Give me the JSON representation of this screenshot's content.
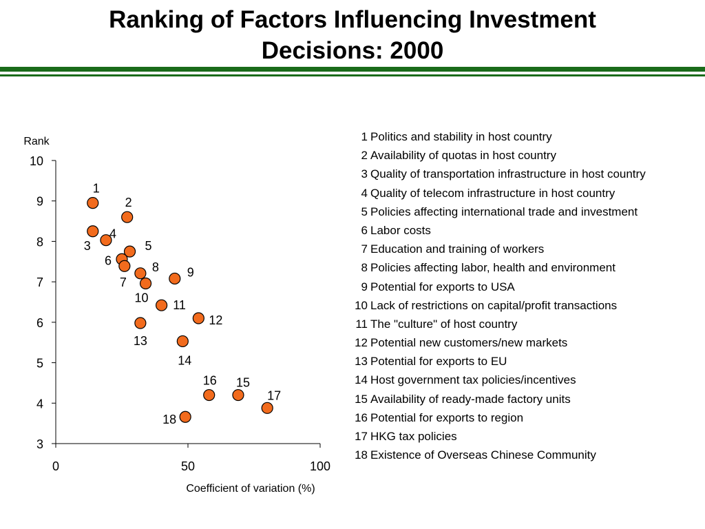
{
  "title_line1": "Ranking of Factors Influencing Investment",
  "title_line2": "Decisions: 2000",
  "chart_data": {
    "type": "scatter",
    "xlabel": "Coefficient of variation (%)",
    "ylabel": "Rank",
    "xlim": [
      0,
      100
    ],
    "ylim": [
      3,
      10
    ],
    "xticks": [
      0,
      50,
      100
    ],
    "yticks": [
      3,
      4,
      5,
      6,
      7,
      8,
      9,
      10
    ],
    "grid": false,
    "marker_color": "#f26b1d",
    "marker_edge": "#000000",
    "points": [
      {
        "label": "1",
        "x": 14,
        "y": 8.95
      },
      {
        "label": "2",
        "x": 27,
        "y": 8.6
      },
      {
        "label": "3",
        "x": 14,
        "y": 8.25
      },
      {
        "label": "4",
        "x": 19,
        "y": 8.03
      },
      {
        "label": "5",
        "x": 28,
        "y": 7.75
      },
      {
        "label": "6",
        "x": 25,
        "y": 7.56
      },
      {
        "label": "7",
        "x": 26,
        "y": 7.39
      },
      {
        "label": "8",
        "x": 32,
        "y": 7.21
      },
      {
        "label": "9",
        "x": 45,
        "y": 7.08
      },
      {
        "label": "10",
        "x": 34,
        "y": 6.96
      },
      {
        "label": "11",
        "x": 40,
        "y": 6.42
      },
      {
        "label": "12",
        "x": 54,
        "y": 6.1
      },
      {
        "label": "13",
        "x": 32,
        "y": 5.98
      },
      {
        "label": "14",
        "x": 48,
        "y": 5.53
      },
      {
        "label": "16",
        "x": 58,
        "y": 4.2
      },
      {
        "label": "15",
        "x": 69,
        "y": 4.2
      },
      {
        "label": "17",
        "x": 80,
        "y": 3.88
      },
      {
        "label": "18",
        "x": 49,
        "y": 3.66
      }
    ]
  },
  "legend": [
    {
      "num": "1",
      "text": "Politics and stability in host country"
    },
    {
      "num": "2",
      "text": "Availability of quotas in host country"
    },
    {
      "num": "3",
      "text": "Quality of transportation infrastructure in host country"
    },
    {
      "num": "4",
      "text": "Quality of telecom infrastructure in host country"
    },
    {
      "num": "5",
      "text": "Policies affecting international trade and investment"
    },
    {
      "num": "6",
      "text": "Labor costs"
    },
    {
      "num": "7",
      "text": "Education and training of workers"
    },
    {
      "num": "8",
      "text": "Policies affecting labor, health and environment"
    },
    {
      "num": "9",
      "text": "Potential for exports to USA"
    },
    {
      "num": "10",
      "text": "Lack of restrictions on capital/profit transactions"
    },
    {
      "num": "11",
      "text": "The \"culture\" of host country"
    },
    {
      "num": "12",
      "text": "Potential new customers/new markets"
    },
    {
      "num": "13",
      "text": "Potential for exports to EU"
    },
    {
      "num": "14",
      "text": "Host government tax policies/incentives"
    },
    {
      "num": "15",
      "text": "Availability of ready-made factory units"
    },
    {
      "num": "16",
      "text": "Potential for exports to region"
    },
    {
      "num": "17",
      "text": "HKG tax policies"
    },
    {
      "num": "18",
      "text": "Existence of Overseas Chinese Community"
    }
  ]
}
